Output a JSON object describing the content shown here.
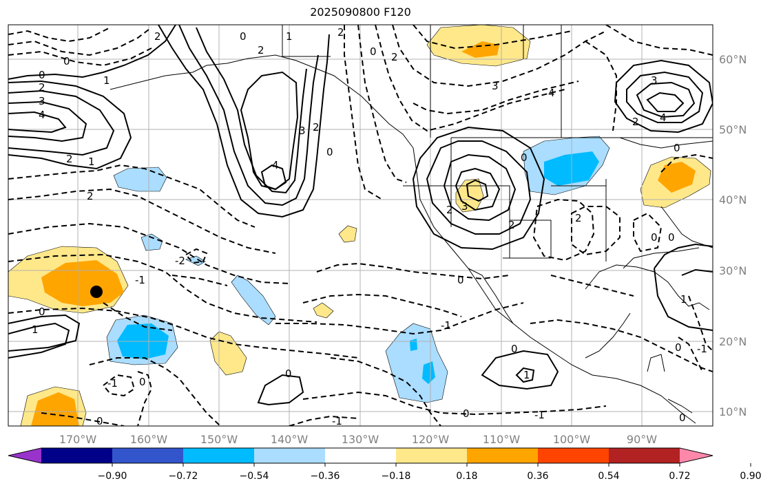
{
  "title": "2025090800 F120",
  "lon_ticks": [
    "170°W",
    "160°W",
    "150°W",
    "140°W",
    "130°W",
    "120°W",
    "110°W",
    "100°W",
    "90°W"
  ],
  "lat_ticks": [
    "60°N",
    "50°N",
    "40°N",
    "30°N",
    "20°N",
    "10°N"
  ],
  "colorbar": {
    "colors": [
      "#9933cc",
      "#000088",
      "#3355cc",
      "#00bbff",
      "#aaddff",
      "#ffffff",
      "#ffe88a",
      "#ffa500",
      "#ff4400",
      "#b22222",
      "#ff88aa"
    ],
    "labels": [
      "−0.90",
      "−0.72",
      "−0.54",
      "−0.36",
      "−0.18",
      "0.18",
      "0.36",
      "0.54",
      "0.72",
      "0.90"
    ]
  },
  "contour_labels": [
    "0",
    "1",
    "2",
    "3",
    "4",
    "-1",
    "-2"
  ],
  "marker": "black-dot"
}
